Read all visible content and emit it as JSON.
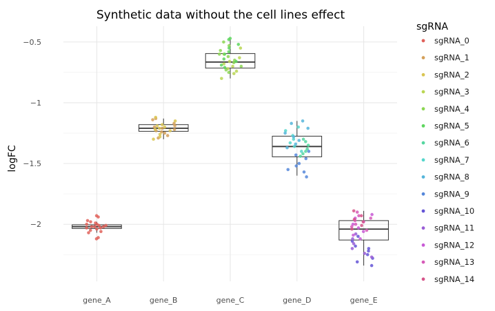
{
  "chart_data": {
    "type": "box",
    "title": "Synthetic data without the cell lines effect",
    "xlabel": "",
    "ylabel": "logFC",
    "categories": [
      "gene_A",
      "gene_B",
      "gene_C",
      "gene_D",
      "gene_E"
    ],
    "ylim": [
      -2.47,
      -0.37
    ],
    "yticks": [
      -0.5,
      -1,
      -1.5,
      -2
    ],
    "ytick_labels": [
      "−0.5",
      "−1",
      "−1.5",
      "−2"
    ],
    "grid": true,
    "legend": {
      "title": "sgRNA",
      "position": "right",
      "entries": [
        {
          "name": "sgRNA_0",
          "color": "#E0625B"
        },
        {
          "name": "sgRNA_1",
          "color": "#D4A05A"
        },
        {
          "name": "sgRNA_2",
          "color": "#D9C552"
        },
        {
          "name": "sgRNA_3",
          "color": "#BAD653"
        },
        {
          "name": "sgRNA_4",
          "color": "#8CD653"
        },
        {
          "name": "sgRNA_5",
          "color": "#5DD65E"
        },
        {
          "name": "sgRNA_6",
          "color": "#55D6A0"
        },
        {
          "name": "sgRNA_7",
          "color": "#55D6CB"
        },
        {
          "name": "sgRNA_8",
          "color": "#55B5DA"
        },
        {
          "name": "sgRNA_9",
          "color": "#5587DA"
        },
        {
          "name": "sgRNA_10",
          "color": "#6455D6"
        },
        {
          "name": "sgRNA_11",
          "color": "#9A5ED6"
        },
        {
          "name": "sgRNA_12",
          "color": "#C85AD6"
        },
        {
          "name": "sgRNA_13",
          "color": "#D65AB8"
        },
        {
          "name": "sgRNA_14",
          "color": "#D6558A"
        }
      ]
    },
    "boxes": [
      {
        "category": "gene_A",
        "q1": -2.035,
        "median": -2.02,
        "q3": -2.005,
        "whisker_low": -2.07,
        "whisker_high": -1.98
      },
      {
        "category": "gene_B",
        "q1": -1.235,
        "median": -1.21,
        "q3": -1.18,
        "whisker_low": -1.3,
        "whisker_high": -1.13
      },
      {
        "category": "gene_C",
        "q1": -0.715,
        "median": -0.665,
        "q3": -0.595,
        "whisker_low": -0.8,
        "whisker_high": -0.48
      },
      {
        "category": "gene_D",
        "q1": -1.445,
        "median": -1.36,
        "q3": -1.275,
        "whisker_low": -1.6,
        "whisker_high": -1.15
      },
      {
        "category": "gene_E",
        "q1": -2.13,
        "median": -2.04,
        "q3": -1.97,
        "whisker_low": -2.34,
        "whisker_high": -1.89
      }
    ],
    "points": [
      {
        "category": "gene_A",
        "sgRNA": "sgRNA_0",
        "values": [
          -1.93,
          -1.94,
          -1.97,
          -1.98,
          -1.99,
          -2.0,
          -2.0,
          -2.01,
          -2.01,
          -2.02,
          -2.02,
          -2.02,
          -2.03,
          -2.03,
          -2.04,
          -2.05,
          -2.06,
          -2.07,
          -2.11,
          -2.12
        ]
      },
      {
        "category": "gene_B",
        "sgRNA": "sgRNA_1",
        "values": [
          -1.13,
          -1.14,
          -1.17,
          -1.19,
          -1.2,
          -1.21,
          -1.22,
          -1.23,
          -1.24,
          -1.25,
          -1.27,
          -1.29
        ]
      },
      {
        "category": "gene_B",
        "sgRNA": "sgRNA_2",
        "values": [
          -1.12,
          -1.15,
          -1.18,
          -1.19,
          -1.2,
          -1.21,
          -1.22,
          -1.23,
          -1.26,
          -1.28,
          -1.3
        ]
      },
      {
        "category": "gene_C",
        "sgRNA": "sgRNA_3",
        "values": [
          -0.55,
          -0.6,
          -0.63,
          -0.66,
          -0.68,
          -0.7,
          -0.72,
          -0.74,
          -0.76,
          -0.8
        ]
      },
      {
        "category": "gene_C",
        "sgRNA": "sgRNA_4",
        "values": [
          -0.5,
          -0.53,
          -0.57,
          -0.6,
          -0.62,
          -0.65,
          -0.67,
          -0.7,
          -0.73,
          -0.75
        ]
      },
      {
        "category": "gene_C",
        "sgRNA": "sgRNA_5",
        "values": [
          -0.47,
          -0.48,
          -0.52,
          -0.55,
          -0.58,
          -0.6,
          -0.64,
          -0.66,
          -0.69,
          -0.71
        ]
      },
      {
        "category": "gene_D",
        "sgRNA": "sgRNA_6",
        "values": [
          -1.3,
          -1.32,
          -1.35,
          -1.38,
          -1.4,
          -1.42,
          -1.44
        ]
      },
      {
        "category": "gene_D",
        "sgRNA": "sgRNA_7",
        "values": [
          -1.2,
          -1.23,
          -1.27,
          -1.3,
          -1.33,
          -1.36,
          -1.4
        ]
      },
      {
        "category": "gene_D",
        "sgRNA": "sgRNA_8",
        "values": [
          -1.15,
          -1.17,
          -1.21,
          -1.25,
          -1.28,
          -1.31,
          -1.34,
          -1.37
        ]
      },
      {
        "category": "gene_D",
        "sgRNA": "sgRNA_9",
        "values": [
          -1.4,
          -1.43,
          -1.46,
          -1.5,
          -1.52,
          -1.55,
          -1.57,
          -1.61
        ]
      },
      {
        "category": "gene_E",
        "sgRNA": "sgRNA_10",
        "values": [
          -2.1,
          -2.14,
          -2.18,
          -2.2,
          -2.22,
          -2.25,
          -2.28,
          -2.31,
          -2.34
        ]
      },
      {
        "category": "gene_E",
        "sgRNA": "sgRNA_11",
        "values": [
          -2.08,
          -2.12,
          -2.16,
          -2.2,
          -2.24,
          -2.27
        ]
      },
      {
        "category": "gene_E",
        "sgRNA": "sgRNA_12",
        "values": [
          -1.92,
          -1.95,
          -1.98,
          -2.0,
          -2.03,
          -2.06,
          -2.09,
          -2.12
        ]
      },
      {
        "category": "gene_E",
        "sgRNA": "sgRNA_13",
        "values": [
          -1.9,
          -1.93,
          -1.95,
          -1.97,
          -2.0,
          -2.02,
          -2.05
        ]
      },
      {
        "category": "gene_E",
        "sgRNA": "sgRNA_14",
        "values": [
          -1.89,
          -1.93,
          -1.96,
          -1.98,
          -2.01,
          -2.04
        ]
      }
    ]
  }
}
